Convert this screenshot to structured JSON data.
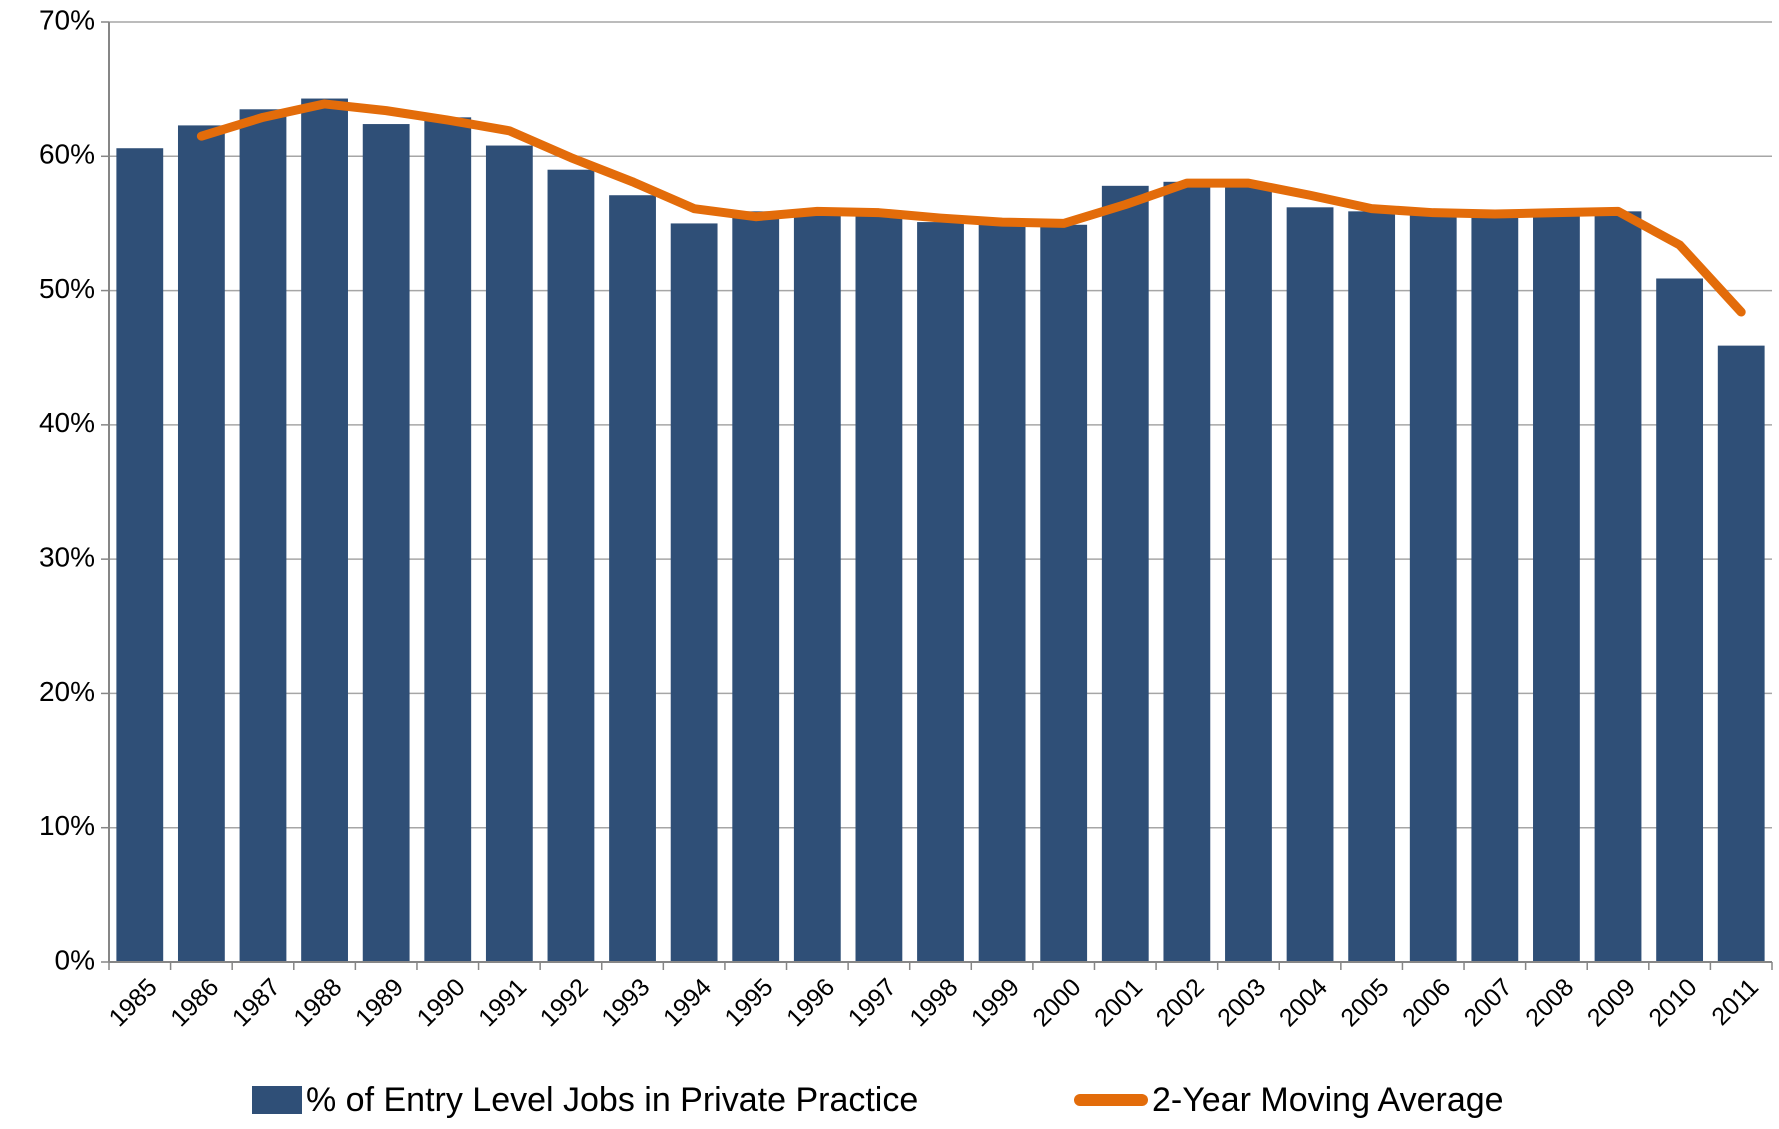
{
  "chart_data": {
    "type": "bar",
    "categories": [
      "1985",
      "1986",
      "1987",
      "1988",
      "1989",
      "1990",
      "1991",
      "1992",
      "1993",
      "1994",
      "1995",
      "1996",
      "1997",
      "1998",
      "1999",
      "2000",
      "2001",
      "2002",
      "2003",
      "2004",
      "2005",
      "2006",
      "2007",
      "2008",
      "2009",
      "2010",
      "2011"
    ],
    "series": [
      {
        "name": "% of Entry Level Jobs in Private Practice",
        "type": "bar",
        "color": "#2f4f77",
        "values": [
          60.6,
          62.3,
          63.5,
          64.3,
          62.4,
          62.9,
          60.8,
          59.0,
          57.1,
          55.0,
          55.9,
          55.9,
          55.7,
          55.1,
          55.1,
          54.9,
          57.8,
          58.1,
          57.9,
          56.2,
          55.9,
          55.7,
          55.6,
          55.9,
          55.9,
          50.9,
          45.9
        ]
      },
      {
        "name": "2-Year Moving Average",
        "type": "line",
        "color": "#e36c0a",
        "values": [
          null,
          61.5,
          62.9,
          63.9,
          63.4,
          62.7,
          61.9,
          59.9,
          58.1,
          56.1,
          55.5,
          55.9,
          55.8,
          55.4,
          55.1,
          55.0,
          56.4,
          58.0,
          58.0,
          57.1,
          56.1,
          55.8,
          55.7,
          55.8,
          55.9,
          53.4,
          48.4
        ]
      }
    ],
    "ylim": [
      0,
      70
    ],
    "yticks": [
      {
        "value": 0,
        "label": "0%"
      },
      {
        "value": 10,
        "label": "10%"
      },
      {
        "value": 20,
        "label": "20%"
      },
      {
        "value": 30,
        "label": "30%"
      },
      {
        "value": 40,
        "label": "40%"
      },
      {
        "value": 50,
        "label": "50%"
      },
      {
        "value": 60,
        "label": "60%"
      },
      {
        "value": 70,
        "label": "70%"
      }
    ],
    "grid": true
  }
}
